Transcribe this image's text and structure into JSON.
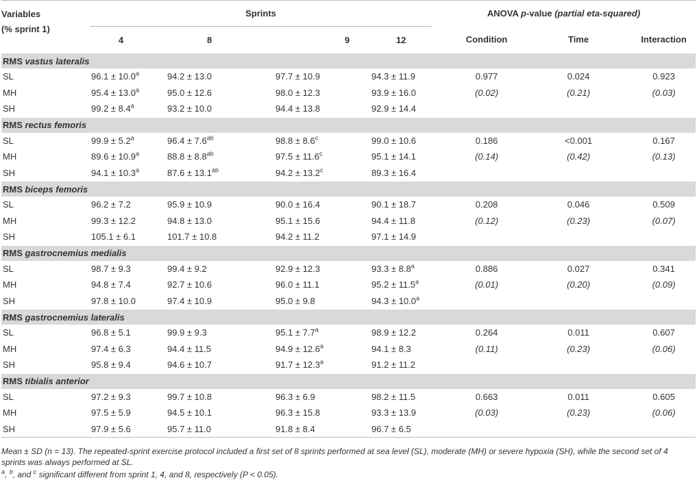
{
  "header": {
    "variables": [
      "Variables",
      "(% sprint 1)"
    ],
    "sprints_title": "Sprints",
    "sprints": [
      "4",
      "8",
      "9",
      "12"
    ],
    "anova_title": {
      "a": "ANOVA",
      "p": "p",
      "b": "-value",
      "c": "(partial eta-squared)"
    },
    "anova_cols": [
      "Condition",
      "Time",
      "Interaction"
    ]
  },
  "sections": [
    {
      "title": {
        "prefix": "RMS",
        "muscle": "vastus lateralis"
      },
      "rows": [
        {
          "label": "SL",
          "cells": [
            {
              "text": "96.1 ± 10.0",
              "sup": "a"
            },
            "94.2 ± 13.0",
            "97.7 ± 10.9",
            "94.3 ± 11.9"
          ]
        },
        {
          "label": "MH",
          "cells": [
            {
              "text": "95.4 ± 13.0",
              "sup": "a"
            },
            "95.0 ± 12.6",
            "98.0 ± 12.3",
            "93.9 ± 16.0"
          ]
        },
        {
          "label": "SH",
          "cells": [
            {
              "text": "99.2 ± 8.4",
              "sup": "a"
            },
            "93.2 ± 10.0",
            "94.4 ± 13.8",
            "92.9 ± 14.4"
          ]
        }
      ],
      "anova": {
        "p": [
          "0.977",
          "0.024",
          "0.923"
        ],
        "eta": [
          "(0.02)",
          "(0.21)",
          "(0.03)"
        ]
      }
    },
    {
      "title": {
        "prefix": "RMS",
        "muscle": "rectus femoris"
      },
      "rows": [
        {
          "label": "SL",
          "cells": [
            {
              "text": "99.9 ± 5.2",
              "sup": "a"
            },
            {
              "text": "96.4 ± 7.6",
              "sup": "ab"
            },
            {
              "text": "98.8 ± 8.6",
              "sup": "c"
            },
            "99.0 ± 10.6"
          ]
        },
        {
          "label": "MH",
          "cells": [
            {
              "text": "89.6 ± 10.9",
              "sup": "a"
            },
            {
              "text": "88.8 ± 8.8",
              "sup": "ab"
            },
            {
              "text": "97.5 ± 11.6",
              "sup": "c"
            },
            "95.1 ± 14.1"
          ]
        },
        {
          "label": "SH",
          "cells": [
            {
              "text": "94.1 ± 10.3",
              "sup": "a"
            },
            {
              "text": "87.6 ± 13.1",
              "sup": "ab"
            },
            {
              "text": "94.2 ± 13.2",
              "sup": "c"
            },
            "89.3 ± 16.4"
          ]
        }
      ],
      "anova": {
        "p": [
          "0.186",
          "<0.001",
          "0.167"
        ],
        "eta": [
          "(0.14)",
          "(0.42)",
          "(0.13)"
        ]
      }
    },
    {
      "title": {
        "prefix": "RMS",
        "muscle": "biceps femoris"
      },
      "rows": [
        {
          "label": "SL",
          "cells": [
            "96.2 ± 7.2",
            "95.9 ± 10.9",
            "90.0 ± 16.4",
            "90.1 ± 18.7"
          ]
        },
        {
          "label": "MH",
          "cells": [
            "99.3 ± 12.2",
            "94.8 ± 13.0",
            "95.1 ± 15.6",
            "94.4 ± 11.8"
          ]
        },
        {
          "label": "SH",
          "cells": [
            "105.1 ± 6.1",
            "101.7 ± 10.8",
            "94.2 ± 11.2",
            "97.1 ± 14.9"
          ]
        }
      ],
      "anova": {
        "p": [
          "0.208",
          "0.046",
          "0.509"
        ],
        "eta": [
          "(0.12)",
          "(0.23)",
          "(0.07)"
        ]
      }
    },
    {
      "title": {
        "prefix": "RMS",
        "muscle": "gastrocnemius medialis"
      },
      "rows": [
        {
          "label": "SL",
          "cells": [
            "98.7 ± 9.3",
            "99.4 ± 9.2",
            "92.9 ± 12.3",
            {
              "text": "93.3 ± 8.8",
              "sup": "a"
            }
          ]
        },
        {
          "label": "MH",
          "cells": [
            "94.8 ± 7.4",
            "92.7 ± 10.6",
            "96.0 ± 11.1",
            {
              "text": "95.2 ± 11.5",
              "sup": "a"
            }
          ]
        },
        {
          "label": "SH",
          "cells": [
            "97.8 ± 10.0",
            "97.4 ± 10.9",
            "95.0 ± 9.8",
            {
              "text": "94.3 ± 10.0",
              "sup": "a"
            }
          ]
        }
      ],
      "anova": {
        "p": [
          "0.886",
          "0.027",
          "0.341"
        ],
        "eta": [
          "(0.01)",
          "(0.20)",
          "(0.09)"
        ]
      }
    },
    {
      "title": {
        "prefix": "RMS",
        "muscle": "gastrocnemius lateralis"
      },
      "rows": [
        {
          "label": "SL",
          "cells": [
            "96.8 ± 5.1",
            "99.9 ± 9.3",
            {
              "text": "95.1 ± 7.7",
              "sup": "a"
            },
            "98.9 ± 12.2"
          ]
        },
        {
          "label": "MH",
          "cells": [
            "97.4 ± 6.3",
            "94.4 ± 11.5",
            {
              "text": "94.9 ± 12.6",
              "sup": "a"
            },
            "94.1 ± 8.3"
          ]
        },
        {
          "label": "SH",
          "cells": [
            "95.8 ± 9.4",
            "94.6 ± 10.7",
            {
              "text": "91.7 ± 12.3",
              "sup": "a"
            },
            "91.2 ± 11.2"
          ]
        }
      ],
      "anova": {
        "p": [
          "0.264",
          "0.011",
          "0.607"
        ],
        "eta": [
          "(0.11)",
          "(0.23)",
          "(0.06)"
        ]
      }
    },
    {
      "title": {
        "prefix": "RMS",
        "muscle": "tibialis anterior"
      },
      "rows": [
        {
          "label": "SL",
          "cells": [
            "97.2 ± 9.3",
            "99.7 ± 10.8",
            "96.3 ± 6.9",
            "98.2 ± 11.5"
          ]
        },
        {
          "label": "MH",
          "cells": [
            "97.5 ± 5.9",
            "94.5 ± 10.1",
            "96.3 ± 15.8",
            "93.3 ± 13.9"
          ]
        },
        {
          "label": "SH",
          "cells": [
            "97.9 ± 5.6",
            "95.7 ± 11.0",
            "91.8 ± 8.4",
            "96.7 ± 6.5"
          ]
        }
      ],
      "anova": {
        "p": [
          "0.663",
          "0.011",
          "0.605"
        ],
        "eta": [
          "(0.03)",
          "(0.23)",
          "(0.06)"
        ]
      }
    }
  ],
  "footnotes": {
    "note1": "Mean ± SD (n = 13). The repeated-sprint exercise protocol included a first set of 8 sprints performed at sea level (SL), moderate (MH) or severe hypoxia (SH), while the second set of 4 sprints was always performed at SL.",
    "note2": [
      {
        "sup": "a"
      },
      {
        "text": ", "
      },
      {
        "sup": "b"
      },
      {
        "text": ", and "
      },
      {
        "sup": "c"
      },
      {
        "text": " significant different from sprint 1, 4, and 8, respectively (P < 0.05)."
      }
    ]
  }
}
